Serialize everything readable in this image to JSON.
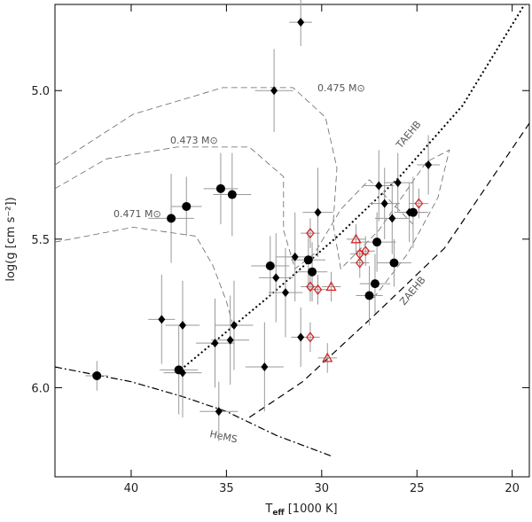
{
  "chart_data": {
    "type": "scatter",
    "xlabel": [
      "T",
      "eff",
      "[1000 K]"
    ],
    "ylabel": "log(g [cm s⁻²])",
    "xlim": [
      44,
      19.1
    ],
    "ylim": [
      6.3,
      4.71
    ],
    "xticks": [
      40,
      35,
      30,
      25,
      20
    ],
    "yticks": [
      {
        "value": 5,
        "label": "5.0"
      },
      5.5,
      {
        "value": 6,
        "label": "6.0"
      }
    ],
    "series": [
      {
        "marker": "circle",
        "color": "#000000",
        "x": [
          37.9,
          37.1,
          35.3,
          34.7,
          41.8,
          32.7,
          30.7,
          30.5,
          27.1,
          26.2,
          27.2,
          27.5,
          37.5,
          25.2
        ],
        "y": [
          5.43,
          5.39,
          5.33,
          5.35,
          5.96,
          5.59,
          5.57,
          5.61,
          5.51,
          5.58,
          5.65,
          5.69,
          5.94,
          5.41
        ],
        "xerr": [
          1.2,
          0.8,
          0.9,
          1.0,
          0.6,
          1.0,
          0.9,
          0.8,
          1.0,
          0.9,
          0.8,
          0.7,
          1.0,
          0.8
        ],
        "yerr": [
          0.15,
          0.1,
          0.12,
          0.14,
          0.05,
          0.1,
          0.1,
          0.1,
          0.1,
          0.08,
          0.1,
          0.1,
          0.15,
          0.12
        ]
      },
      {
        "marker": "diamond",
        "color": "#000000",
        "x": [
          31.1,
          32.5,
          30.2,
          27.0,
          26.0,
          24.4,
          26.7,
          26.3,
          25.4,
          31.4,
          32.4,
          31.9,
          38.4,
          37.3,
          34.6,
          35.6,
          34.8,
          33.0,
          37.3,
          35.4,
          31.1
        ],
        "y": [
          4.77,
          5.0,
          5.41,
          5.32,
          5.31,
          5.25,
          5.38,
          5.43,
          5.41,
          5.56,
          5.63,
          5.68,
          5.77,
          5.79,
          5.79,
          5.85,
          5.84,
          5.93,
          5.95,
          6.08,
          5.83
        ],
        "xerr": [
          0.6,
          1.0,
          0.8,
          0.8,
          0.7,
          0.6,
          0.8,
          0.9,
          0.8,
          1.0,
          0.9,
          0.9,
          0.7,
          0.9,
          1.0,
          1.0,
          1.0,
          1.0,
          1.0,
          1.0,
          0.5
        ],
        "yerr": [
          0.08,
          0.14,
          0.15,
          0.12,
          0.1,
          0.1,
          0.12,
          0.12,
          0.1,
          0.15,
          0.15,
          0.15,
          0.15,
          0.15,
          0.15,
          0.15,
          0.15,
          0.15,
          0.15,
          0.1,
          0.1
        ]
      },
      {
        "marker": "diamond_open",
        "color": "#d62728",
        "x": [
          30.6,
          28.0,
          28.0,
          27.7,
          24.9,
          30.6,
          30.2,
          30.6
        ],
        "y": [
          5.48,
          5.55,
          5.58,
          5.54,
          5.38,
          5.66,
          5.67,
          5.83
        ],
        "xerr": [
          0.5,
          0.5,
          0.5,
          0.5,
          0.5,
          0.5,
          0.5,
          0.5
        ],
        "yerr": [
          0.05,
          0.05,
          0.05,
          0.05,
          0.05,
          0.05,
          0.05,
          0.05
        ]
      },
      {
        "marker": "triangle_open",
        "color": "#d62728",
        "x": [
          28.2,
          29.5,
          29.7
        ],
        "y": [
          5.5,
          5.66,
          5.9
        ],
        "xerr": [
          0.5,
          0.5,
          0.5
        ],
        "yerr": [
          0.05,
          0.05,
          0.05
        ]
      }
    ],
    "curves": [
      {
        "name": "HeMS",
        "style": "dashdot",
        "x": [
          44,
          40,
          37.3,
          35,
          32.4,
          29.5
        ],
        "y": [
          5.93,
          5.98,
          6.03,
          6.08,
          6.16,
          6.23
        ]
      },
      {
        "name": "TAEHB",
        "style": "dotted",
        "x": [
          37.4,
          32.9,
          29.16,
          25.9,
          22.6,
          19.35
        ],
        "y": [
          5.94,
          5.7,
          5.49,
          5.29,
          5.05,
          4.71
        ]
      },
      {
        "name": "ZAEHB",
        "style": "dashed",
        "x": [
          33.8,
          31.0,
          27.3,
          23.55,
          19.1
        ],
        "y": [
          6.1,
          5.98,
          5.76,
          5.53,
          5.11
        ]
      },
      {
        "name": "0.475 M⊙",
        "style": "thin",
        "x": [
          44,
          39.9,
          35.2,
          31.5,
          29.8,
          29.2,
          29.4,
          29.0,
          27.0,
          24.5,
          23.3,
          23.9,
          25.5,
          27.3
        ],
        "y": [
          5.25,
          5.08,
          4.99,
          4.99,
          5.09,
          5.26,
          5.45,
          5.6,
          5.47,
          5.24,
          5.2,
          5.36,
          5.55,
          5.7
        ]
      },
      {
        "name": "0.473 M⊙",
        "style": "thin",
        "x": [
          44,
          41.3,
          37.6,
          33.8,
          32.0,
          32.0,
          31.4,
          30.4,
          29.0,
          27.5,
          25.2
        ],
        "y": [
          5.33,
          5.23,
          5.19,
          5.19,
          5.29,
          5.47,
          5.6,
          5.55,
          5.4,
          5.3,
          5.45
        ]
      },
      {
        "name": "0.471 M⊙",
        "style": "thin",
        "x": [
          44,
          39.9,
          36.6,
          35.7,
          35.0,
          34.7
        ],
        "y": [
          5.51,
          5.46,
          5.49,
          5.59,
          5.71,
          5.78
        ]
      }
    ]
  }
}
